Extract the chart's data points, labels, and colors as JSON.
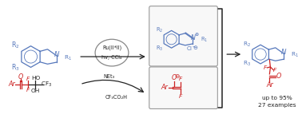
{
  "bg_color": "#ffffff",
  "blue": "#5577bb",
  "red": "#cc2222",
  "dark": "#222222",
  "gray": "#888888",
  "box_edge": "#999999",
  "figsize": [
    3.78,
    1.53
  ],
  "dpi": 100,
  "text_upto": "up to 95%",
  "text_examples": "27 examples",
  "cat1": "Ru(II*II)",
  "cat2": "hv, CCl₄",
  "cond_net": "NEt₃",
  "cond_tfa": "CF₃CO₂H"
}
